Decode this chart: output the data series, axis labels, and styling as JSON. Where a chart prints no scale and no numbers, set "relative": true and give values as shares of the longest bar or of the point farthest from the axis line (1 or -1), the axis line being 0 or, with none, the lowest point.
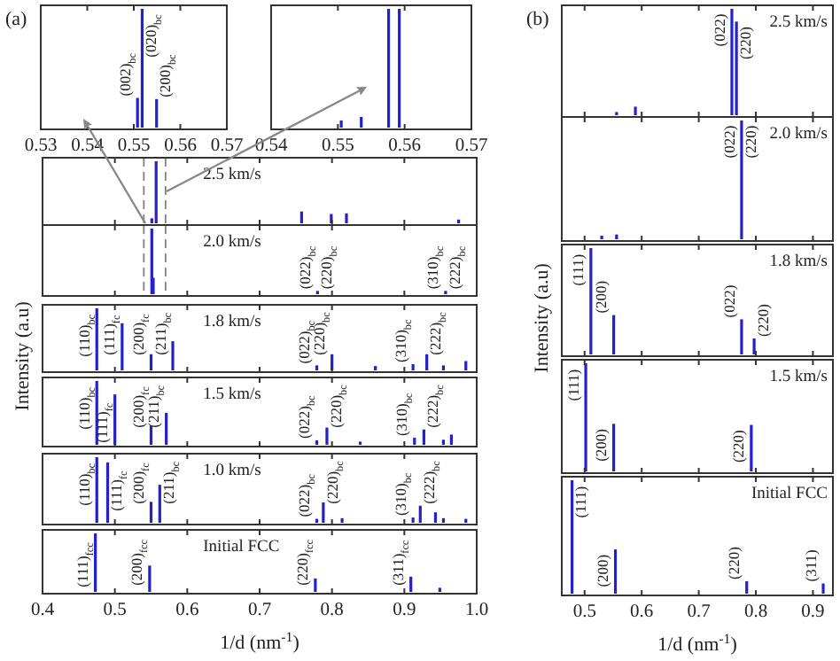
{
  "chart_data": [
    {
      "type": "bar",
      "title": "(a)",
      "color": "#2222cc",
      "relative": true,
      "x": [
        0.5508,
        0.5518,
        0.5549
      ],
      "values": [
        0.25,
        1,
        0.24
      ],
      "xlim": [
        0.53,
        0.57
      ],
      "xticks": [
        0.53,
        0.54,
        0.55,
        0.56,
        0.57
      ],
      "tick_labels": "x",
      "annotations": [
        {
          "text": "(002)$_{bc}$",
          "x": 0.5508,
          "y": 0.25
        },
        {
          "text": "(020)$_{bc}$",
          "x": 0.5518,
          "y": 1
        },
        {
          "text": "(200)$_{bc}$",
          "x": 0.5549,
          "y": 0.24
        }
      ]
    },
    {
      "type": "bar",
      "color": "#2222cc",
      "relative": true,
      "x": [
        0.5505,
        0.5535,
        0.5576,
        0.5592
      ],
      "values": [
        0.06,
        0.09,
        1,
        1
      ],
      "xlim": [
        0.54,
        0.57
      ],
      "xticks": [
        0.54,
        0.55,
        0.56,
        0.57
      ],
      "tick_labels": "x"
    },
    {
      "type": "bar",
      "color": "#2222cc",
      "relative": true,
      "x": [
        0.551,
        0.557,
        0.758,
        0.799,
        0.82,
        0.975
      ],
      "values": [
        0.08,
        1,
        0.19,
        0.15,
        0.16,
        0.06
      ],
      "xlim": [
        0.4,
        1.0
      ],
      "xticks": [
        0.4,
        0.5,
        0.6,
        0.7,
        0.8,
        0.9,
        1.0
      ],
      "tick_labels": false,
      "annotations": [
        "2.5 km/s"
      ],
      "ref_lines": [
        {
          "axis": "x",
          "value": 0.54,
          "color": "#808080",
          "line_style": "dashed"
        },
        {
          "axis": "x",
          "value": 0.57,
          "color": "#808080",
          "line_style": "dashed"
        }
      ]
    },
    {
      "type": "bar",
      "color": "#2222cc",
      "relative": true,
      "x": [
        0.551,
        0.553,
        0.78,
        0.957
      ],
      "values": [
        1,
        0.25,
        0.05,
        0.05
      ],
      "xlim": [
        0.4,
        1.0
      ],
      "xticks": [
        0.4,
        0.5,
        0.6,
        0.7,
        0.8,
        0.9,
        1.0
      ],
      "tick_labels": false,
      "annotations": [
        "2.0 km/s",
        {
          "text": "(022)$_{bc}$",
          "x": 0.78,
          "y": 0.05
        },
        {
          "text": "(220)$_{bc}$",
          "x": 0.78,
          "y": 0.05
        },
        {
          "text": "(310)$_{bc}$",
          "x": 0.957,
          "y": 0.05
        },
        {
          "text": "(222)$_{bc}$",
          "x": 0.957,
          "y": 0.05
        }
      ],
      "ref_lines": [
        {
          "axis": "x",
          "value": 0.54,
          "color": "#808080",
          "line_style": "dashed"
        },
        {
          "axis": "x",
          "value": 0.57,
          "color": "#808080",
          "line_style": "dashed"
        }
      ]
    },
    {
      "type": "bar",
      "color": "#2222cc",
      "relative": true,
      "ylabel": "Intensity (a.u)",
      "x": [
        0.475,
        0.51,
        0.55,
        0.58,
        0.779,
        0.8,
        0.86,
        0.912,
        0.931,
        0.954,
        0.985
      ],
      "values": [
        1,
        0.76,
        0.26,
        0.47,
        0.08,
        0.26,
        0.07,
        0.1,
        0.26,
        0.08,
        0.15
      ],
      "xlim": [
        0.4,
        1.0
      ],
      "xticks": [
        0.4,
        0.5,
        0.6,
        0.7,
        0.8,
        0.9,
        1.0
      ],
      "tick_labels": false,
      "annotations": [
        "1.8 km/s",
        {
          "text": "(110)$_{bc}$",
          "x": 0.475,
          "y": 1
        },
        {
          "text": "(111)$_{fc}$",
          "x": 0.51,
          "y": 0.76
        },
        {
          "text": "(200)$_{fc}$",
          "x": 0.55,
          "y": 0.26
        },
        {
          "text": "(211)$_{bc}$",
          "x": 0.58,
          "y": 0.47
        },
        {
          "text": "(022)$_{bc}$",
          "x": 0.779,
          "y": 0.08
        },
        {
          "text": "(220)$_{bc}$",
          "x": 0.8,
          "y": 0.26
        },
        {
          "text": "(310)$_{bc}$",
          "x": 0.912,
          "y": 0.1
        },
        {
          "text": "(222)$_{bc}$",
          "x": 0.931,
          "y": 0.26
        }
      ]
    },
    {
      "type": "bar",
      "color": "#2222cc",
      "relative": true,
      "x": [
        0.475,
        0.5,
        0.55,
        0.571,
        0.779,
        0.793,
        0.839,
        0.914,
        0.927,
        0.954,
        0.965
      ],
      "values": [
        1,
        0.79,
        0.3,
        0.5,
        0.07,
        0.27,
        0.05,
        0.11,
        0.24,
        0.08,
        0.16
      ],
      "xlim": [
        0.4,
        1.0
      ],
      "xticks": [
        0.4,
        0.5,
        0.6,
        0.7,
        0.8,
        0.9,
        1.0
      ],
      "tick_labels": false,
      "annotations": [
        "1.5 km/s",
        {
          "text": "(110)$_{bc}$",
          "x": 0.475,
          "y": 1
        },
        {
          "text": "(111)$_{fc}$",
          "x": 0.5,
          "y": 0.79
        },
        {
          "text": "(200)$_{fc}$",
          "x": 0.55,
          "y": 0.3
        },
        {
          "text": "(211)$_{bc}$",
          "x": 0.571,
          "y": 0.5
        },
        {
          "text": "(022)$_{bc}$",
          "x": 0.779,
          "y": 0.07
        },
        {
          "text": "(220)$_{bc}$",
          "x": 0.793,
          "y": 0.27
        },
        {
          "text": "(310)$_{bc}$",
          "x": 0.914,
          "y": 0.11
        },
        {
          "text": "(222)$_{bc}$",
          "x": 0.927,
          "y": 0.24
        }
      ]
    },
    {
      "type": "bar",
      "color": "#2222cc",
      "relative": true,
      "x": [
        0.475,
        0.49,
        0.55,
        0.562,
        0.779,
        0.788,
        0.814,
        0.912,
        0.922,
        0.943,
        0.954,
        0.985
      ],
      "values": [
        1,
        0.92,
        0.32,
        0.58,
        0.06,
        0.31,
        0.07,
        0.08,
        0.26,
        0.16,
        0.07,
        0.06
      ],
      "xlim": [
        0.4,
        1.0
      ],
      "xticks": [
        0.4,
        0.5,
        0.6,
        0.7,
        0.8,
        0.9,
        1.0
      ],
      "tick_labels": false,
      "annotations": [
        "1.0 km/s",
        {
          "text": "(110)$_{bc}$",
          "x": 0.475,
          "y": 1
        },
        {
          "text": "(111)$_{fc}$",
          "x": 0.49,
          "y": 0.92
        },
        {
          "text": "(200)$_{fc}$",
          "x": 0.55,
          "y": 0.32
        },
        {
          "text": "(211)$_{bc}$",
          "x": 0.562,
          "y": 0.58
        },
        {
          "text": "(022)$_{bc}$",
          "x": 0.779,
          "y": 0.06
        },
        {
          "text": "(220)$_{bc}$",
          "x": 0.788,
          "y": 0.31
        },
        {
          "text": "(310)$_{bc}$",
          "x": 0.912,
          "y": 0.08
        },
        {
          "text": "(222)$_{bc}$",
          "x": 0.922,
          "y": 0.26
        }
      ]
    },
    {
      "type": "bar",
      "color": "#2222cc",
      "relative": true,
      "xlabel": "1/d (nm$^{-1}$)",
      "x": [
        0.473,
        0.548,
        0.777,
        0.909,
        0.949
      ],
      "values": [
        1,
        0.45,
        0.23,
        0.26,
        0.07
      ],
      "xlim": [
        0.4,
        1.0
      ],
      "xticks": [
        0.4,
        0.5,
        0.6,
        0.7,
        0.8,
        0.9,
        {
          "value": 1.0,
          "label": "1.0"
        }
      ],
      "tick_labels": "x",
      "annotations": [
        "Initial FCC",
        {
          "text": "(111)$_{fcc}$",
          "x": 0.473,
          "y": 1
        },
        {
          "text": "(200)$_{fcc}$",
          "x": 0.548,
          "y": 0.45
        },
        {
          "text": "(220)$_{fcc}$",
          "x": 0.777,
          "y": 0.23
        },
        {
          "text": "(311)$_{fcc}$",
          "x": 0.909,
          "y": 0.26
        }
      ]
    },
    {
      "type": "bar",
      "title": "(b)",
      "color": "#2222cc",
      "relative": true,
      "x": [
        0.556,
        0.589,
        0.758,
        0.766
      ],
      "values": [
        0.03,
        0.08,
        1,
        0.88
      ],
      "xlim": [
        0.46,
        0.935
      ],
      "xticks": [
        0.5,
        0.6,
        0.7,
        0.8,
        0.9
      ],
      "tick_labels": false,
      "annotations": [
        "2.5 km/s",
        {
          "text": "(022)",
          "x": 0.758,
          "y": 1
        },
        {
          "text": "(220)",
          "x": 0.766,
          "y": 0.88
        }
      ]
    },
    {
      "type": "bar",
      "color": "#2222cc",
      "relative": true,
      "x": [
        0.53,
        0.556,
        0.775
      ],
      "values": [
        0.03,
        0.04,
        1
      ],
      "xlim": [
        0.46,
        0.935
      ],
      "xticks": [
        0.5,
        0.6,
        0.7,
        0.8,
        0.9
      ],
      "tick_labels": false,
      "annotations": [
        "2.0 km/s",
        {
          "text": "(022)",
          "x": 0.775,
          "y": 1
        },
        {
          "text": "(220)",
          "x": 0.775,
          "y": 1
        }
      ]
    },
    {
      "type": "bar",
      "color": "#2222cc",
      "relative": true,
      "ylabel": "Intensity (a.u)",
      "x": [
        0.511,
        0.551,
        0.775,
        0.797
      ],
      "values": [
        1,
        0.37,
        0.33,
        0.15
      ],
      "xlim": [
        0.46,
        0.935
      ],
      "xticks": [
        0.5,
        0.6,
        0.7,
        0.8,
        0.9
      ],
      "tick_labels": false,
      "annotations": [
        "1.8 km/s",
        {
          "text": "(111)",
          "x": 0.511,
          "y": 1
        },
        {
          "text": "(200)",
          "x": 0.551,
          "y": 0.37
        },
        {
          "text": "(022)",
          "x": 0.775,
          "y": 0.33
        },
        {
          "text": "(220)",
          "x": 0.797,
          "y": 0.15
        }
      ]
    },
    {
      "type": "bar",
      "color": "#2222cc",
      "relative": true,
      "x": [
        0.502,
        0.551,
        0.792
      ],
      "values": [
        1,
        0.44,
        0.43
      ],
      "xlim": [
        0.46,
        0.935
      ],
      "xticks": [
        0.5,
        0.6,
        0.7,
        0.8,
        0.9
      ],
      "tick_labels": false,
      "annotations": [
        "1.5 km/s",
        {
          "text": "(111)",
          "x": 0.502,
          "y": 1
        },
        {
          "text": "(200)",
          "x": 0.551,
          "y": 0.44
        },
        {
          "text": "(220)",
          "x": 0.792,
          "y": 0.43
        }
      ]
    },
    {
      "type": "bar",
      "color": "#2222cc",
      "relative": true,
      "xlabel": "1/d (nm$^{-1}$)",
      "x": [
        0.478,
        0.554,
        0.784,
        0.918
      ],
      "values": [
        1,
        0.39,
        0.11,
        0.09
      ],
      "xlim": [
        0.46,
        0.935
      ],
      "xticks": [
        0.5,
        0.6,
        0.7,
        0.8,
        0.9
      ],
      "tick_labels": "x",
      "annotations": [
        "Initial FCC",
        {
          "text": "(111)",
          "x": 0.478,
          "y": 1
        },
        {
          "text": "(200)",
          "x": 0.554,
          "y": 0.39
        },
        {
          "text": "(220)",
          "x": 0.784,
          "y": 0.11
        },
        {
          "text": "(311)",
          "x": 0.918,
          "y": 0.09
        }
      ]
    }
  ]
}
